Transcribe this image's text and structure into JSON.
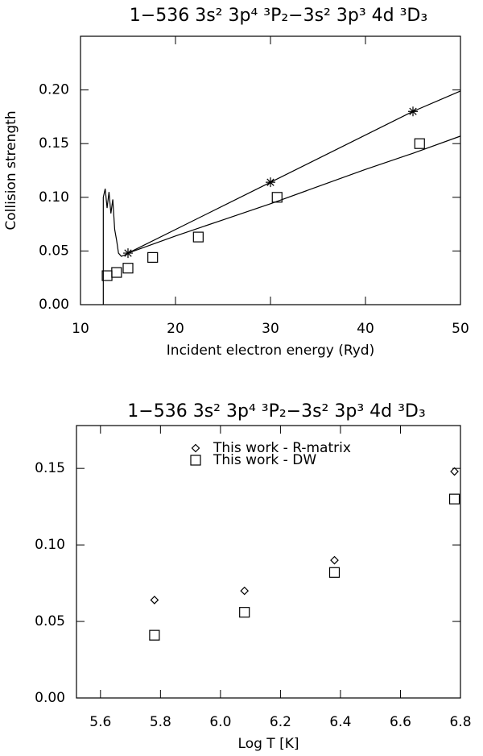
{
  "chart_data": [
    {
      "type": "line",
      "title": "1−536  3s² 3p⁴ ³P₂−3s² 3p³ 4d ³D₃",
      "x_label": "Incident electron energy (Ryd)",
      "y_label": "Collision strength",
      "xlim": [
        10,
        50
      ],
      "xticks": [
        10,
        20,
        30,
        40,
        50
      ],
      "ylim": [
        0,
        0.25
      ],
      "yticks": [
        {
          "value": 0,
          "label": "0.00"
        },
        {
          "value": 0.05,
          "label": "0.05"
        },
        {
          "value": 0.1,
          "label": "0.10"
        },
        {
          "value": 0.15,
          "label": "0.15"
        },
        {
          "value": 0.2,
          "label": "0.20"
        }
      ],
      "series": [
        {
          "marker": "none",
          "color": "#000000",
          "x": [
            12.4,
            12.4,
            12.6,
            12.8,
            13.0,
            13.2,
            13.4,
            13.6,
            13.8,
            14.0,
            14.3,
            14.6,
            15,
            20,
            25,
            30,
            35,
            40,
            45,
            50
          ],
          "values": [
            0,
            0.1,
            0.108,
            0.09,
            0.105,
            0.085,
            0.098,
            0.07,
            0.06,
            0.048,
            0.045,
            0.046,
            0.048,
            0.064,
            0.079,
            0.094,
            0.11,
            0.126,
            0.141,
            0.157
          ]
        },
        {
          "marker": "none",
          "color": "#000000",
          "x": [
            15,
            30,
            45,
            50
          ],
          "values": [
            0.048,
            0.114,
            0.18,
            0.199
          ]
        },
        {
          "marker": "asterisk",
          "color": "#000000",
          "x": [
            15,
            30,
            45
          ],
          "values": [
            0.048,
            0.114,
            0.18
          ]
        },
        {
          "marker": "square",
          "color": "#000000",
          "x": [
            12.8,
            13.8,
            15,
            17.6,
            22.4,
            30.7,
            45.7
          ],
          "values": [
            0.027,
            0.03,
            0.034,
            0.044,
            0.063,
            0.1,
            0.15
          ]
        }
      ]
    },
    {
      "type": "scatter",
      "title": "1−536  3s² 3p⁴ ³P₂−3s² 3p³ 4d ³D₃",
      "x_label": "Log T [K]",
      "xlim": [
        5.52,
        6.8
      ],
      "xticks": [
        5.6,
        5.8,
        {
          "value": 6,
          "label": "6.0"
        },
        6.2,
        6.4,
        6.6,
        6.8
      ],
      "ylim": [
        0,
        0.178
      ],
      "yticks": [
        {
          "value": 0,
          "label": "0.00"
        },
        {
          "value": 0.05,
          "label": "0.05"
        },
        {
          "value": 0.1,
          "label": "0.10"
        },
        {
          "value": 0.15,
          "label": "0.15"
        }
      ],
      "legend": "upper center",
      "series": [
        {
          "name": "This work - R-matrix",
          "marker": "diamond",
          "color": "#000000",
          "x": [
            5.78,
            6.08,
            6.38,
            6.78
          ],
          "values": [
            0.064,
            0.07,
            0.09,
            0.148
          ]
        },
        {
          "name": "This work - DW",
          "marker": "square",
          "color": "#000000",
          "x": [
            5.78,
            6.08,
            6.38,
            6.78
          ],
          "values": [
            0.041,
            0.056,
            0.082,
            0.13
          ]
        }
      ]
    }
  ]
}
